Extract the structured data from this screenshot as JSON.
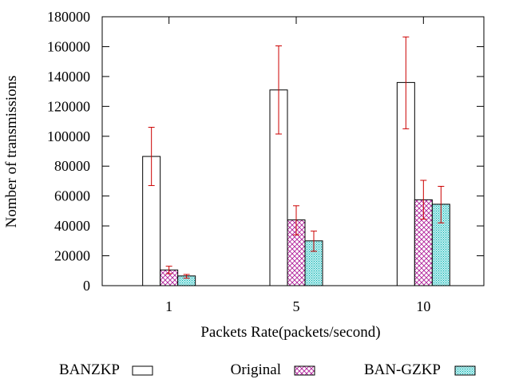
{
  "chart_data": {
    "type": "bar",
    "title": "",
    "xlabel": "Packets Rate(packets/second)",
    "ylabel": "Nomber of transmissions",
    "categories": [
      "1",
      "5",
      "10"
    ],
    "ylim": [
      0,
      180000
    ],
    "yticks": [
      0,
      20000,
      40000,
      60000,
      80000,
      100000,
      120000,
      140000,
      160000,
      180000
    ],
    "legend_position": "bottom",
    "series": [
      {
        "name": "BANZKP",
        "pattern": "empty",
        "values": [
          86500,
          131000,
          136000
        ],
        "error_low": [
          67000,
          101500,
          105000
        ],
        "error_high": [
          106000,
          160500,
          166500
        ]
      },
      {
        "name": "Original",
        "pattern": "crosshatch",
        "color": "#b0209a",
        "values": [
          10500,
          44000,
          57500
        ],
        "error_low": [
          8000,
          34000,
          44500
        ],
        "error_high": [
          13000,
          53500,
          70500
        ]
      },
      {
        "name": "BAN-GZKP",
        "pattern": "dots",
        "color": "#00b4b4",
        "values": [
          6500,
          30000,
          54500
        ],
        "error_low": [
          5000,
          23000,
          42000
        ],
        "error_high": [
          7500,
          36500,
          66500
        ]
      }
    ],
    "errorbar_color": "#cc0000"
  }
}
